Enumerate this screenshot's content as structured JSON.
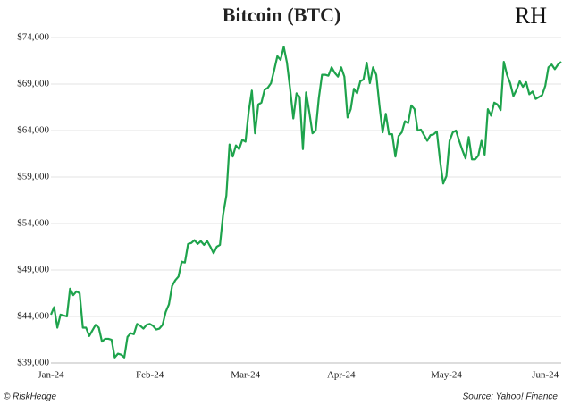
{
  "chart_data": {
    "type": "line",
    "title": "Bitcoin (BTC)",
    "logo": "RH",
    "credit": "© RiskHedge",
    "source": "Source: Yahoo! Finance",
    "categories": [
      "Jan-24",
      null,
      null,
      null,
      null,
      null,
      null,
      null,
      null,
      null,
      null,
      null,
      null,
      null,
      null,
      null,
      null,
      null,
      null,
      null,
      null,
      null,
      null,
      null,
      null,
      null,
      null,
      null,
      null,
      null,
      null,
      "Feb-24",
      null,
      null,
      null,
      null,
      null,
      null,
      null,
      null,
      null,
      null,
      null,
      null,
      null,
      null,
      null,
      null,
      null,
      null,
      null,
      null,
      null,
      null,
      null,
      null,
      null,
      null,
      null,
      null,
      null,
      "Mar-24",
      null,
      null,
      null,
      null,
      null,
      null,
      null,
      null,
      null,
      null,
      null,
      null,
      null,
      null,
      null,
      null,
      null,
      null,
      null,
      null,
      null,
      null,
      null,
      null,
      null,
      null,
      null,
      null,
      null,
      "Apr-24",
      null,
      null,
      null,
      null,
      null,
      null,
      null,
      null,
      null,
      null,
      null,
      null,
      null,
      null,
      null,
      null,
      null,
      null,
      null,
      null,
      null,
      null,
      null,
      null,
      null,
      null,
      null,
      null,
      null,
      null,
      null,
      null,
      "May-24",
      null,
      null,
      null,
      null,
      null,
      null,
      null,
      null,
      null,
      null,
      null,
      null,
      null,
      null,
      null,
      null,
      null,
      null,
      null,
      null,
      null,
      null,
      null,
      null,
      null,
      null,
      null,
      null,
      null,
      null,
      "Jun-24",
      null,
      null,
      null,
      null,
      null
    ],
    "series": [
      {
        "name": "BTC",
        "color": "#1ea34c",
        "values": [
          44200,
          45000,
          42800,
          44200,
          44100,
          44000,
          47000,
          46300,
          46700,
          46500,
          42800,
          42800,
          41900,
          42500,
          43100,
          42800,
          41300,
          41600,
          41600,
          41500,
          39600,
          40000,
          39900,
          39600,
          41800,
          42200,
          42100,
          43200,
          43000,
          42700,
          43100,
          43200,
          43000,
          42600,
          42700,
          43100,
          44500,
          45300,
          47300,
          47900,
          48300,
          49900,
          49800,
          51800,
          51900,
          52200,
          51800,
          52100,
          51700,
          52100,
          51500,
          50800,
          51500,
          51700,
          55000,
          57000,
          62500,
          61200,
          62400,
          62000,
          63000,
          62800,
          66000,
          68300,
          63700,
          66800,
          67000,
          68400,
          68600,
          69100,
          70500,
          72000,
          71600,
          73000,
          71300,
          68500,
          65300,
          68000,
          67600,
          62000,
          68100,
          66000,
          63700,
          64000,
          67500,
          70000,
          70000,
          69900,
          70800,
          70200,
          69800,
          70800,
          69800,
          65400,
          66300,
          68500,
          68000,
          69300,
          69500,
          71300,
          69100,
          70800,
          70000,
          66700,
          63800,
          65800,
          63600,
          63600,
          61200,
          63400,
          63800,
          65000,
          64800,
          66700,
          66300,
          64000,
          64100,
          63500,
          62900,
          63500,
          63600,
          63900,
          60800,
          58300,
          59100,
          62900,
          63800,
          64000,
          62900,
          61900,
          61000,
          63300,
          60900,
          60900,
          61300,
          62900,
          61400,
          66300,
          65600,
          67000,
          66800,
          66200,
          71400,
          70000,
          69100,
          67700,
          68400,
          69300,
          68700,
          69200,
          67900,
          68200,
          67400,
          67600,
          67800,
          68800,
          70800,
          71100,
          70600,
          71100,
          71400
        ]
      }
    ],
    "ylim": [
      39000,
      74000
    ],
    "yticks": [
      {
        "value": 39000,
        "label": "$39,000"
      },
      {
        "value": 44000,
        "label": "$44,000"
      },
      {
        "value": 49000,
        "label": "$49,000"
      },
      {
        "value": 54000,
        "label": "$54,000"
      },
      {
        "value": 59000,
        "label": "$59,000"
      },
      {
        "value": 64000,
        "label": "$64,000"
      },
      {
        "value": 69000,
        "label": "$69,000"
      },
      {
        "value": 74000,
        "label": "$74,000"
      }
    ],
    "grid": true
  }
}
